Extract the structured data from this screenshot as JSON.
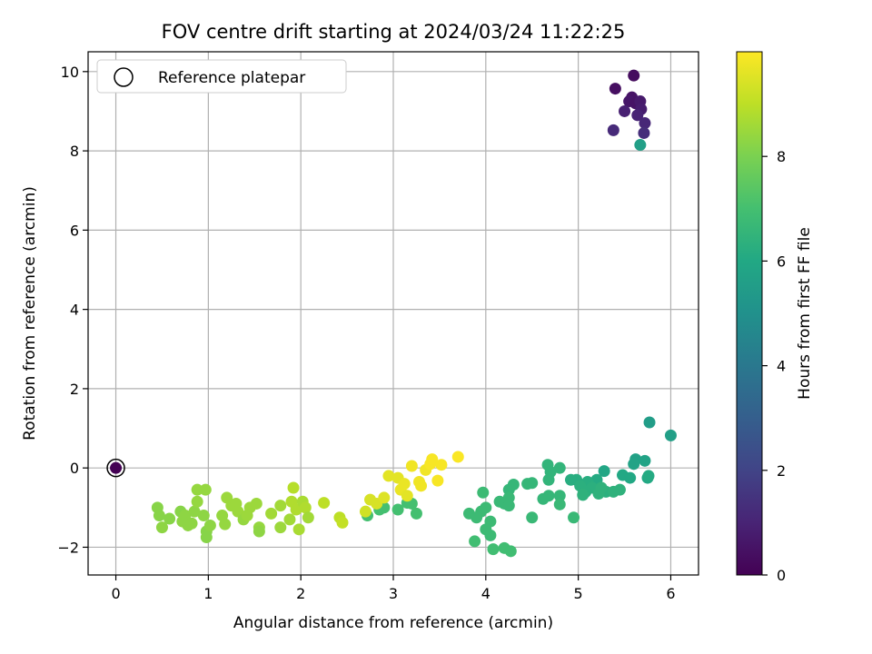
{
  "chart_data": {
    "type": "scatter",
    "title": "FOV centre drift starting at 2024/03/24 11:22:25",
    "xlabel": "Angular distance from reference (arcmin)",
    "ylabel": "Rotation from reference (arcmin)",
    "xlim": [
      -0.3,
      6.3
    ],
    "ylim": [
      -2.7,
      10.5
    ],
    "xticks": [
      0,
      1,
      2,
      3,
      4,
      5,
      6
    ],
    "yticks": [
      -2,
      0,
      2,
      4,
      6,
      8,
      10
    ],
    "grid": true,
    "colormap": "viridis",
    "colorbar": {
      "label": "Hours from first FF file",
      "range": [
        0,
        10
      ],
      "ticks": [
        0,
        2,
        4,
        6,
        8
      ]
    },
    "legend": {
      "placement": "upper-left",
      "entries": [
        "Reference platepar"
      ]
    },
    "reference_point": {
      "x": 0,
      "y": 0,
      "hours": 0
    },
    "points": [
      {
        "x": 5.6,
        "y": 9.9,
        "h": 0.3
      },
      {
        "x": 5.4,
        "y": 9.57,
        "h": 0.4
      },
      {
        "x": 5.58,
        "y": 9.35,
        "h": 0.5
      },
      {
        "x": 5.55,
        "y": 9.25,
        "h": 0.6
      },
      {
        "x": 5.62,
        "y": 9.2,
        "h": 0.5
      },
      {
        "x": 5.67,
        "y": 9.25,
        "h": 0.7
      },
      {
        "x": 5.68,
        "y": 9.05,
        "h": 0.8
      },
      {
        "x": 5.5,
        "y": 9.0,
        "h": 0.9
      },
      {
        "x": 5.64,
        "y": 8.9,
        "h": 1.0
      },
      {
        "x": 5.72,
        "y": 8.7,
        "h": 1.1
      },
      {
        "x": 5.38,
        "y": 8.52,
        "h": 1.2
      },
      {
        "x": 5.71,
        "y": 8.45,
        "h": 1.3
      },
      {
        "x": 5.67,
        "y": 8.15,
        "h": 5.6
      },
      {
        "x": 5.77,
        "y": 1.15,
        "h": 5.5
      },
      {
        "x": 6.0,
        "y": 0.82,
        "h": 5.6
      },
      {
        "x": 5.62,
        "y": 0.22,
        "h": 5.7
      },
      {
        "x": 5.72,
        "y": 0.18,
        "h": 5.8
      },
      {
        "x": 5.6,
        "y": 0.1,
        "h": 5.8
      },
      {
        "x": 5.28,
        "y": -0.08,
        "h": 5.9
      },
      {
        "x": 5.48,
        "y": -0.18,
        "h": 6.0
      },
      {
        "x": 5.56,
        "y": -0.25,
        "h": 6.0
      },
      {
        "x": 5.75,
        "y": -0.25,
        "h": 6.0
      },
      {
        "x": 5.76,
        "y": -0.2,
        "h": 6.1
      },
      {
        "x": 5.2,
        "y": -0.3,
        "h": 6.1
      },
      {
        "x": 5.1,
        "y": -0.35,
        "h": 6.2
      },
      {
        "x": 4.98,
        "y": -0.3,
        "h": 6.2
      },
      {
        "x": 4.92,
        "y": -0.3,
        "h": 6.2
      },
      {
        "x": 5.02,
        "y": -0.45,
        "h": 6.3
      },
      {
        "x": 5.15,
        "y": -0.5,
        "h": 6.3
      },
      {
        "x": 5.08,
        "y": -0.6,
        "h": 6.3
      },
      {
        "x": 5.3,
        "y": -0.6,
        "h": 6.3
      },
      {
        "x": 5.45,
        "y": -0.55,
        "h": 6.4
      },
      {
        "x": 5.22,
        "y": -0.65,
        "h": 6.4
      },
      {
        "x": 5.05,
        "y": -0.68,
        "h": 6.4
      },
      {
        "x": 5.25,
        "y": -0.5,
        "h": 6.4
      },
      {
        "x": 5.38,
        "y": -0.6,
        "h": 6.4
      },
      {
        "x": 4.67,
        "y": 0.08,
        "h": 6.5
      },
      {
        "x": 4.8,
        "y": 0.0,
        "h": 6.5
      },
      {
        "x": 4.7,
        "y": -0.1,
        "h": 6.5
      },
      {
        "x": 4.68,
        "y": -0.3,
        "h": 6.5
      },
      {
        "x": 4.5,
        "y": -0.38,
        "h": 6.6
      },
      {
        "x": 4.45,
        "y": -0.4,
        "h": 6.6
      },
      {
        "x": 4.3,
        "y": -0.42,
        "h": 6.6
      },
      {
        "x": 4.25,
        "y": -0.55,
        "h": 6.6
      },
      {
        "x": 4.8,
        "y": -0.7,
        "h": 6.6
      },
      {
        "x": 4.68,
        "y": -0.7,
        "h": 6.6
      },
      {
        "x": 4.62,
        "y": -0.78,
        "h": 6.6
      },
      {
        "x": 4.8,
        "y": -0.92,
        "h": 6.7
      },
      {
        "x": 4.95,
        "y": -1.25,
        "h": 6.7
      },
      {
        "x": 4.5,
        "y": -1.25,
        "h": 6.7
      },
      {
        "x": 4.25,
        "y": -0.75,
        "h": 6.7
      },
      {
        "x": 4.15,
        "y": -0.85,
        "h": 6.7
      },
      {
        "x": 4.2,
        "y": -0.9,
        "h": 6.7
      },
      {
        "x": 4.25,
        "y": -0.95,
        "h": 6.7
      },
      {
        "x": 3.97,
        "y": -0.62,
        "h": 6.8
      },
      {
        "x": 4.0,
        "y": -1.0,
        "h": 6.8
      },
      {
        "x": 3.95,
        "y": -1.1,
        "h": 6.8
      },
      {
        "x": 3.82,
        "y": -1.15,
        "h": 6.8
      },
      {
        "x": 3.9,
        "y": -1.25,
        "h": 6.8
      },
      {
        "x": 4.05,
        "y": -1.35,
        "h": 6.8
      },
      {
        "x": 4.0,
        "y": -1.55,
        "h": 6.8
      },
      {
        "x": 4.05,
        "y": -1.7,
        "h": 6.8
      },
      {
        "x": 3.88,
        "y": -1.85,
        "h": 6.9
      },
      {
        "x": 4.08,
        "y": -2.05,
        "h": 6.9
      },
      {
        "x": 4.2,
        "y": -2.02,
        "h": 6.9
      },
      {
        "x": 4.27,
        "y": -2.1,
        "h": 6.9
      },
      {
        "x": 3.25,
        "y": -1.15,
        "h": 7.0
      },
      {
        "x": 3.2,
        "y": -0.9,
        "h": 7.0
      },
      {
        "x": 3.15,
        "y": -0.88,
        "h": 7.0
      },
      {
        "x": 3.05,
        "y": -1.05,
        "h": 7.0
      },
      {
        "x": 2.9,
        "y": -1.0,
        "h": 7.0
      },
      {
        "x": 2.85,
        "y": -1.05,
        "h": 7.0
      },
      {
        "x": 2.72,
        "y": -1.2,
        "h": 7.0
      },
      {
        "x": 0.45,
        "y": -1.0,
        "h": 8.2
      },
      {
        "x": 0.47,
        "y": -1.2,
        "h": 8.2
      },
      {
        "x": 0.5,
        "y": -1.5,
        "h": 8.3
      },
      {
        "x": 0.58,
        "y": -1.28,
        "h": 8.2
      },
      {
        "x": 0.7,
        "y": -1.1,
        "h": 8.2
      },
      {
        "x": 0.75,
        "y": -1.2,
        "h": 8.3
      },
      {
        "x": 0.72,
        "y": -1.35,
        "h": 8.3
      },
      {
        "x": 0.78,
        "y": -1.45,
        "h": 8.3
      },
      {
        "x": 0.82,
        "y": -1.4,
        "h": 8.3
      },
      {
        "x": 0.85,
        "y": -1.1,
        "h": 8.3
      },
      {
        "x": 0.88,
        "y": -0.85,
        "h": 8.4
      },
      {
        "x": 0.88,
        "y": -0.55,
        "h": 8.4
      },
      {
        "x": 0.97,
        "y": -0.55,
        "h": 8.4
      },
      {
        "x": 0.95,
        "y": -1.2,
        "h": 8.3
      },
      {
        "x": 0.98,
        "y": -1.6,
        "h": 8.2
      },
      {
        "x": 0.98,
        "y": -1.75,
        "h": 8.2
      },
      {
        "x": 1.02,
        "y": -1.45,
        "h": 8.3
      },
      {
        "x": 1.15,
        "y": -1.2,
        "h": 8.4
      },
      {
        "x": 1.18,
        "y": -1.42,
        "h": 8.4
      },
      {
        "x": 1.2,
        "y": -0.75,
        "h": 8.5
      },
      {
        "x": 1.25,
        "y": -0.95,
        "h": 8.5
      },
      {
        "x": 1.3,
        "y": -0.9,
        "h": 8.5
      },
      {
        "x": 1.32,
        "y": -1.1,
        "h": 8.5
      },
      {
        "x": 1.38,
        "y": -1.3,
        "h": 8.4
      },
      {
        "x": 1.42,
        "y": -1.2,
        "h": 8.5
      },
      {
        "x": 1.45,
        "y": -1.0,
        "h": 8.5
      },
      {
        "x": 1.52,
        "y": -0.9,
        "h": 8.5
      },
      {
        "x": 1.55,
        "y": -1.5,
        "h": 8.4
      },
      {
        "x": 1.55,
        "y": -1.6,
        "h": 8.3
      },
      {
        "x": 1.68,
        "y": -1.15,
        "h": 8.6
      },
      {
        "x": 1.78,
        "y": -0.95,
        "h": 8.6
      },
      {
        "x": 1.78,
        "y": -1.5,
        "h": 8.5
      },
      {
        "x": 1.88,
        "y": -1.3,
        "h": 8.6
      },
      {
        "x": 1.9,
        "y": -0.85,
        "h": 8.8
      },
      {
        "x": 1.92,
        "y": -0.5,
        "h": 8.9
      },
      {
        "x": 1.95,
        "y": -1.05,
        "h": 8.8
      },
      {
        "x": 1.98,
        "y": -1.55,
        "h": 8.7
      },
      {
        "x": 2.02,
        "y": -0.85,
        "h": 8.7
      },
      {
        "x": 2.05,
        "y": -1.0,
        "h": 8.8
      },
      {
        "x": 2.08,
        "y": -1.25,
        "h": 8.6
      },
      {
        "x": 2.25,
        "y": -0.88,
        "h": 9.0
      },
      {
        "x": 2.42,
        "y": -1.25,
        "h": 9.0
      },
      {
        "x": 2.45,
        "y": -1.38,
        "h": 9.1
      },
      {
        "x": 2.75,
        "y": -0.8,
        "h": 9.4
      },
      {
        "x": 2.7,
        "y": -1.1,
        "h": 9.3
      },
      {
        "x": 2.82,
        "y": -0.9,
        "h": 9.4
      },
      {
        "x": 2.9,
        "y": -0.75,
        "h": 9.5
      },
      {
        "x": 2.95,
        "y": -0.2,
        "h": 9.6
      },
      {
        "x": 3.05,
        "y": -0.25,
        "h": 9.6
      },
      {
        "x": 3.08,
        "y": -0.55,
        "h": 9.7
      },
      {
        "x": 3.12,
        "y": -0.4,
        "h": 9.7
      },
      {
        "x": 3.15,
        "y": -0.7,
        "h": 9.6
      },
      {
        "x": 3.2,
        "y": 0.05,
        "h": 9.8
      },
      {
        "x": 3.28,
        "y": -0.35,
        "h": 9.8
      },
      {
        "x": 3.3,
        "y": -0.45,
        "h": 9.8
      },
      {
        "x": 3.35,
        "y": -0.05,
        "h": 9.8
      },
      {
        "x": 3.4,
        "y": 0.1,
        "h": 9.9
      },
      {
        "x": 3.42,
        "y": 0.22,
        "h": 9.9
      },
      {
        "x": 3.48,
        "y": -0.32,
        "h": 9.9
      },
      {
        "x": 3.52,
        "y": 0.08,
        "h": 9.9
      },
      {
        "x": 3.7,
        "y": 0.28,
        "h": 9.95
      }
    ]
  }
}
